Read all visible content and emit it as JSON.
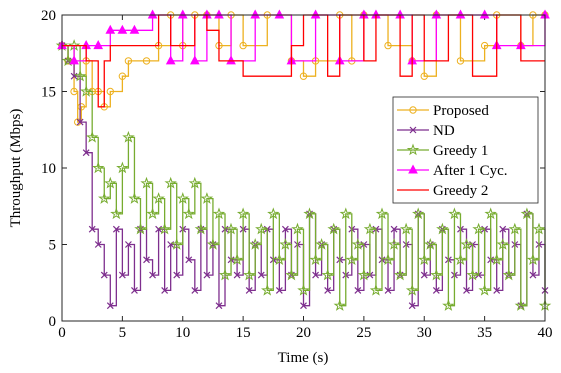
{
  "chart_data": {
    "type": "line",
    "drawstyle": "steps-post",
    "xlabel": "Time (s)",
    "ylabel": "Throughput (Mbps)",
    "xlim": [
      0,
      40
    ],
    "xticks": [
      0,
      5,
      10,
      15,
      20,
      25,
      30,
      35,
      40
    ],
    "ylim": [
      0,
      20
    ],
    "yticks": [
      0,
      5,
      10,
      15,
      20
    ],
    "legend": "upper right",
    "series": [
      {
        "name": "Proposed",
        "color": "#EDB120",
        "marker": "circle",
        "x": [
          0,
          0.5,
          1,
          1.3,
          1.6,
          2,
          2.5,
          3,
          3.5,
          4,
          5,
          5.5,
          7,
          8,
          9,
          10,
          11,
          12,
          13,
          14,
          15,
          17,
          19,
          20,
          21,
          23,
          24,
          25,
          27,
          29,
          30,
          31,
          33,
          35,
          36,
          38,
          39,
          40
        ],
        "values": [
          18,
          17,
          15,
          13,
          14,
          17,
          15,
          15,
          14,
          15,
          16,
          17,
          17,
          18,
          20,
          18,
          20,
          20,
          18,
          20,
          18,
          20,
          17,
          16,
          17,
          20,
          17,
          20,
          18,
          17,
          16,
          20,
          17,
          18,
          20,
          18,
          20,
          20
        ]
      },
      {
        "name": "ND",
        "color": "#7E2F8E",
        "marker": "x",
        "x": [
          0,
          0.5,
          1,
          1.5,
          2,
          2.5,
          3,
          3.5,
          4,
          4.5,
          5,
          5.5,
          6,
          6.5,
          7,
          7.5,
          8,
          8.5,
          9,
          9.5,
          10,
          10.5,
          11,
          11.5,
          12,
          12.5,
          13,
          13.5,
          14,
          14.5,
          15,
          15.5,
          16,
          16.5,
          17,
          17.5,
          18,
          18.5,
          19,
          19.5,
          20,
          20.5,
          21,
          21.5,
          22,
          22.5,
          23,
          23.5,
          24,
          24.5,
          25,
          25.5,
          26,
          26.5,
          27,
          27.5,
          28,
          28.5,
          29,
          29.5,
          30,
          30.5,
          31,
          31.5,
          32,
          32.5,
          33,
          33.5,
          34,
          34.5,
          35,
          35.5,
          36,
          36.5,
          37,
          37.5,
          38,
          38.5,
          39,
          39.5,
          40
        ],
        "values": [
          18,
          17,
          16,
          13,
          11,
          6,
          5,
          3,
          1,
          6,
          3,
          5,
          2,
          6,
          4,
          3,
          6,
          2,
          5,
          3,
          6,
          4,
          2,
          6,
          3,
          5,
          1,
          6,
          4,
          3,
          6,
          2,
          5,
          3,
          6,
          4,
          2,
          6,
          3,
          5,
          1,
          7,
          3,
          5,
          2,
          6,
          4,
          3,
          6,
          2,
          5,
          3,
          6,
          4,
          2,
          6,
          3,
          5,
          1,
          7,
          3,
          5,
          2,
          6,
          4,
          3,
          6,
          2,
          5,
          3,
          6,
          4,
          2,
          6,
          3,
          5,
          1,
          7,
          3,
          5,
          2
        ]
      },
      {
        "name": "Greedy 1",
        "color": "#77AC30",
        "marker": "star",
        "x": [
          0,
          0.5,
          1,
          1.5,
          2,
          2.5,
          3,
          3.5,
          4,
          4.5,
          5,
          5.5,
          6,
          6.5,
          7,
          7.5,
          8,
          8.5,
          9,
          9.5,
          10,
          10.5,
          11,
          11.5,
          12,
          12.5,
          13,
          13.5,
          14,
          14.5,
          15,
          15.5,
          16,
          16.5,
          17,
          17.5,
          18,
          18.5,
          19,
          19.5,
          20,
          20.5,
          21,
          21.5,
          22,
          22.5,
          23,
          23.5,
          24,
          24.5,
          25,
          25.5,
          26,
          26.5,
          27,
          27.5,
          28,
          28.5,
          29,
          29.5,
          30,
          30.5,
          31,
          31.5,
          32,
          32.5,
          33,
          33.5,
          34,
          34.5,
          35,
          35.5,
          36,
          36.5,
          37,
          37.5,
          38,
          38.5,
          39,
          39.5,
          40
        ],
        "values": [
          18,
          17,
          18,
          16,
          15,
          12,
          10,
          8,
          9,
          7,
          10,
          12,
          8,
          6,
          9,
          7,
          8,
          6,
          9,
          5,
          8,
          7,
          9,
          6,
          8,
          5,
          7,
          3,
          6,
          4,
          7,
          3,
          5,
          6,
          2,
          7,
          4,
          5,
          3,
          6,
          2,
          7,
          4,
          5,
          3,
          6,
          1,
          7,
          4,
          5,
          3,
          6,
          2,
          7,
          4,
          5,
          3,
          6,
          2,
          7,
          4,
          5,
          3,
          6,
          1,
          7,
          4,
          5,
          3,
          6,
          2,
          7,
          4,
          5,
          3,
          6,
          1,
          7,
          4,
          6,
          1
        ]
      },
      {
        "name": "After 1 Cyc.",
        "color": "#FF00FF",
        "marker": "triangle",
        "x": [
          0,
          1,
          2,
          3,
          4,
          5,
          6,
          7.5,
          9,
          10,
          11,
          12,
          13,
          14,
          16,
          18,
          19,
          21,
          23,
          25,
          26,
          28,
          29,
          31,
          33,
          35,
          36,
          38,
          40
        ],
        "values": [
          18,
          17,
          18,
          18,
          19,
          19,
          19,
          20,
          17,
          20,
          17,
          20,
          20,
          17,
          20,
          20,
          17,
          20,
          17,
          20,
          20,
          20,
          17,
          20,
          20,
          20,
          18,
          18,
          20
        ]
      },
      {
        "name": "Greedy 2",
        "color": "#FF0000",
        "marker": "none",
        "x": [
          0,
          2,
          3,
          3.5,
          4,
          6,
          8,
          9,
          11,
          12,
          13,
          15,
          17,
          19,
          20,
          22,
          23,
          25,
          26,
          28,
          29,
          30,
          32,
          34,
          36,
          38,
          39,
          40
        ],
        "values": [
          18,
          17,
          14,
          17,
          18,
          18,
          20,
          18,
          20,
          19,
          17,
          16,
          16,
          18,
          20,
          16,
          20,
          17,
          20,
          16,
          20,
          17,
          20,
          16,
          20,
          17,
          17,
          17
        ]
      }
    ]
  }
}
